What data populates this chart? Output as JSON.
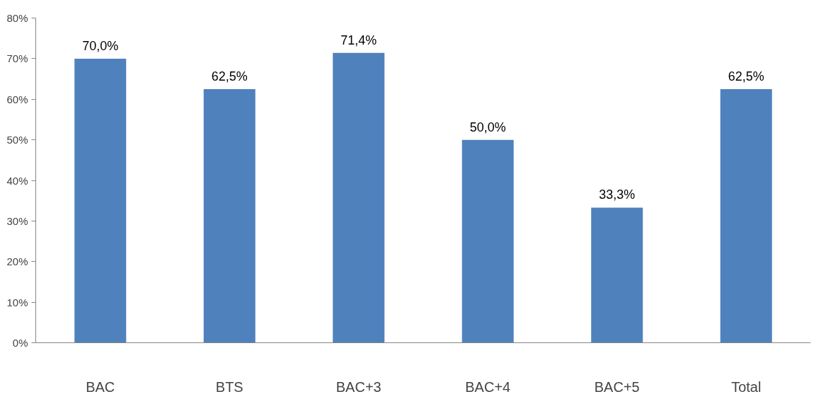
{
  "chart_data": {
    "type": "bar",
    "categories": [
      "BAC",
      "BTS",
      "BAC+3",
      "BAC+4",
      "BAC+5",
      "Total"
    ],
    "values": [
      70.0,
      62.5,
      71.4,
      50.0,
      33.3,
      62.5
    ],
    "value_labels": [
      "70,0%",
      "62,5%",
      "71,4%",
      "50,0%",
      "33,3%",
      "62,5%"
    ],
    "color": "#4f81bd",
    "ylim": [
      0,
      80
    ],
    "yticks": [
      {
        "value": 0,
        "label": "0%"
      },
      {
        "value": 10,
        "label": "10%"
      },
      {
        "value": 20,
        "label": "20%"
      },
      {
        "value": 30,
        "label": "30%"
      },
      {
        "value": 40,
        "label": "40%"
      },
      {
        "value": 50,
        "label": "50%"
      },
      {
        "value": 60,
        "label": "60%"
      },
      {
        "value": 70,
        "label": "70%"
      },
      {
        "value": 80,
        "label": "80%"
      }
    ],
    "grid": false
  }
}
